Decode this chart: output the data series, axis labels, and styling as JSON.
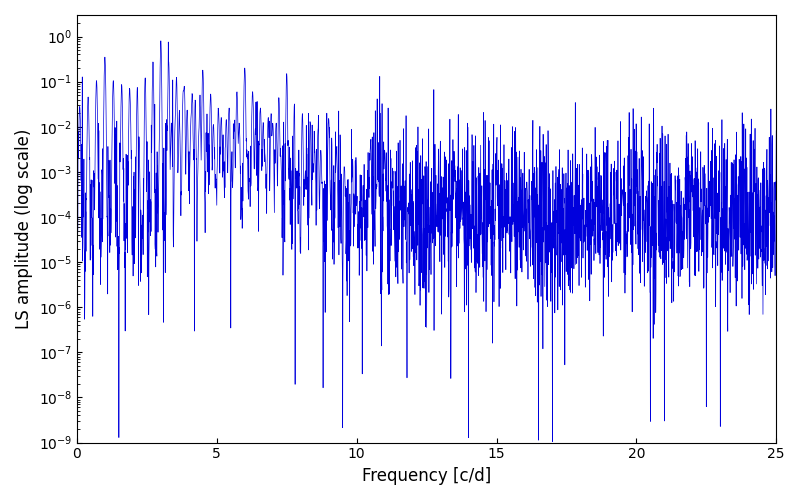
{
  "xlabel": "Frequency [c/d]",
  "ylabel": "LS amplitude (log scale)",
  "xlim": [
    0,
    25
  ],
  "ylim": [
    1e-09,
    3.0
  ],
  "line_color": "#0000dd",
  "line_width": 0.5,
  "background_color": "#ffffff",
  "figsize": [
    8.0,
    5.0
  ],
  "dpi": 100,
  "seed": 12345,
  "n_points": 3000,
  "freq_max": 25.0,
  "base_level": 0.0001,
  "noise_sigma": 2.2
}
